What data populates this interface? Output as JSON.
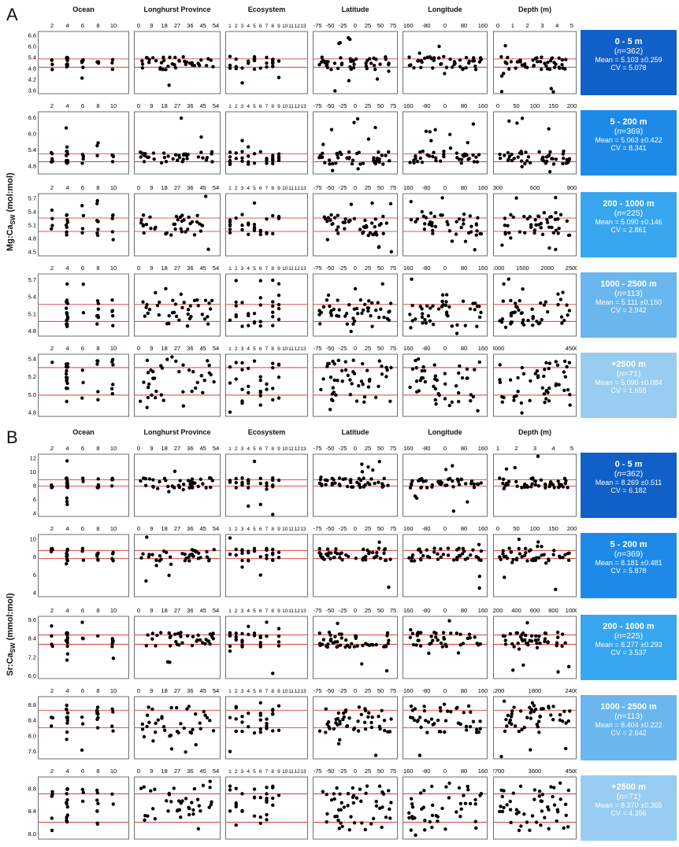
{
  "columns": [
    "Ocean",
    "Longhurst Province",
    "Ecosystem",
    "Latitude",
    "Longitude",
    "Depth (m)"
  ],
  "colors": {
    "point": "#000000",
    "mean_line": "#d42020",
    "frame": "#6e6e6e",
    "box": [
      "#1060c8",
      "#1e8ae8",
      "#38a6ee",
      "#6ab6ee",
      "#98ccf0"
    ]
  },
  "groups": [
    {
      "letter": "A",
      "ylabel_main": "Mg:Ca",
      "ylabel_sub": "SW",
      "ylabel_unit": " (mol:mol)",
      "rows": [
        {
          "yticks": [
            "6.6",
            "6.0",
            "5.4",
            "4.8",
            "4.2",
            "3.6"
          ],
          "ylim": [
            3.4,
            6.8
          ],
          "lines": [
            5.3,
            4.85
          ],
          "xticks": [
            [
              "2",
              "4",
              "6",
              "8",
              "10"
            ],
            [
              "0",
              "9",
              "18",
              "27",
              "36",
              "45",
              "54"
            ],
            [
              "1",
              "2",
              "3",
              "4",
              "5",
              "6",
              "7",
              "8",
              "9",
              "10",
              "11",
              "12",
              "13"
            ],
            [
              "-75",
              "-50",
              "-25",
              "0",
              "25",
              "50",
              "75"
            ],
            [
              "-160",
              "-80",
              "0",
              "80",
              "160"
            ],
            [
              "0",
              "1",
              "2",
              "3",
              "4",
              "5"
            ]
          ],
          "stats": {
            "range": "0 - 5 m",
            "n": "362",
            "mean": "Mean = 5.103 ±0.259",
            "cv": "CV =  5.078"
          }
        },
        {
          "yticks": [
            "6.6",
            "6.0",
            "5.4",
            "4.8"
          ],
          "ylim": [
            4.5,
            6.8
          ],
          "lines": [
            5.25,
            4.95
          ],
          "xticks": [
            [
              "2",
              "4",
              "6",
              "8",
              "10"
            ],
            [
              "0",
              "9",
              "18",
              "27",
              "36",
              "45",
              "54"
            ],
            [
              "1",
              "2",
              "3",
              "4",
              "5",
              "6",
              "7",
              "8",
              "9",
              "10",
              "11",
              "12",
              "13"
            ],
            [
              "-75",
              "-50",
              "-25",
              "0",
              "25",
              "50",
              "75"
            ],
            [
              "-160",
              "-80",
              "0",
              "80",
              "160"
            ],
            [
              "0",
              "50",
              "100",
              "150",
              "200"
            ]
          ],
          "stats": {
            "range": "5 - 200 m",
            "n": "369",
            "mean": "Mean = 5.063 ±0.422",
            "cv": "CV =  8.341"
          }
        },
        {
          "yticks": [
            "5.7",
            "5.4",
            "5.1",
            "4.8",
            "4.5"
          ],
          "ylim": [
            4.4,
            5.8
          ],
          "lines": [
            5.25,
            4.95
          ],
          "xticks": [
            [
              "2",
              "4",
              "6",
              "8",
              "10"
            ],
            [
              "0",
              "9",
              "18",
              "27",
              "36",
              "45",
              "54"
            ],
            [
              "1",
              "2",
              "3",
              "4",
              "5",
              "6",
              "7",
              "8",
              "9",
              "10",
              "11",
              "12",
              "13"
            ],
            [
              "-75",
              "-50",
              "-25",
              "0",
              "25",
              "50",
              "75"
            ],
            [
              "-160",
              "-80",
              "0",
              "80",
              "160"
            ],
            [
              "300",
              "600",
              "900"
            ]
          ],
          "stats": {
            "range": "200 - 1000 m",
            "n": "225",
            "mean": "Mean = 5.090 ±0.146",
            "cv": "CV =  2.861"
          }
        },
        {
          "yticks": [
            "5.7",
            "5.4",
            "5.1",
            "4.8"
          ],
          "ylim": [
            4.7,
            5.8
          ],
          "lines": [
            5.26,
            4.96
          ],
          "xticks": [
            [
              "2",
              "4",
              "6",
              "8",
              "10"
            ],
            [
              "0",
              "9",
              "18",
              "27",
              "36",
              "45",
              "54"
            ],
            [
              "1",
              "2",
              "3",
              "4",
              "5",
              "6",
              "7",
              "8",
              "9",
              "10",
              "11",
              "12",
              "13"
            ],
            [
              "-75",
              "-50",
              "-25",
              "0",
              "25",
              "50",
              "75"
            ],
            [
              "-160",
              "-80",
              "0",
              "80",
              "160"
            ],
            [
              "1000",
              "1500",
              "2000",
              "2500"
            ]
          ],
          "stats": {
            "range": "1000 - 2500 m",
            "n": "113",
            "mean": "Mean = 5.111 ±0.150",
            "cv": "CV =  2.942"
          }
        },
        {
          "yticks": [
            "5.4",
            "5.2",
            "5.0",
            "4.8"
          ],
          "ylim": [
            4.75,
            5.45
          ],
          "lines": [
            5.3,
            4.99
          ],
          "xticks": [
            [
              "2",
              "4",
              "6",
              "8",
              "10"
            ],
            [
              "0",
              "9",
              "18",
              "27",
              "36",
              "45",
              "54"
            ],
            [
              "1",
              "2",
              "3",
              "4",
              "5",
              "6",
              "7",
              "8",
              "9",
              "10",
              "11",
              "12",
              "13"
            ],
            [
              "-75",
              "-50",
              "-25",
              "0",
              "25",
              "50",
              "75"
            ],
            [
              "-160",
              "-80",
              "0",
              "80",
              "160"
            ],
            [
              "3000",
              "4500"
            ]
          ],
          "stats": {
            "range": "+2500 m",
            "n": "71",
            "mean": "Mean = 5.090 ±0.084",
            "cv": "CV =  1.655"
          }
        }
      ]
    },
    {
      "letter": "B",
      "ylabel_main": "Sr:Ca",
      "ylabel_sub": "SW",
      "ylabel_unit": " (mmol:mol)",
      "rows": [
        {
          "yticks": [
            "12",
            "10",
            "8",
            "6",
            "4"
          ],
          "ylim": [
            3.5,
            12.5
          ],
          "lines": [
            8.8,
            7.9
          ],
          "xticks": [
            [
              "2",
              "4",
              "6",
              "8",
              "10"
            ],
            [
              "0",
              "9",
              "18",
              "27",
              "36",
              "45",
              "54"
            ],
            [
              "1",
              "2",
              "3",
              "4",
              "5",
              "6",
              "7",
              "8",
              "9",
              "10",
              "11",
              "12",
              "13"
            ],
            [
              "-75",
              "-50",
              "-25",
              "0",
              "25",
              "50",
              "75"
            ],
            [
              "-160",
              "-80",
              "0",
              "80",
              "160"
            ],
            [
              "1",
              "2",
              "3",
              "4",
              "5"
            ]
          ],
          "stats": {
            "range": "0 - 5 m",
            "n": "362",
            "mean": "Mean = 8.269 ±0.511",
            "cv": "CV =  6.182"
          }
        },
        {
          "yticks": [
            "10",
            "8",
            "6",
            "4"
          ],
          "ylim": [
            3.5,
            10.5
          ],
          "lines": [
            8.7,
            7.8
          ],
          "xticks": [
            [
              "2",
              "4",
              "6",
              "8",
              "10"
            ],
            [
              "0",
              "9",
              "18",
              "27",
              "36",
              "45",
              "54"
            ],
            [
              "1",
              "2",
              "3",
              "4",
              "5",
              "6",
              "7",
              "8",
              "9",
              "10",
              "11",
              "12",
              "13"
            ],
            [
              "-75",
              "-50",
              "-25",
              "0",
              "25",
              "50",
              "75"
            ],
            [
              "-160",
              "-80",
              "0",
              "80",
              "160"
            ],
            [
              "0",
              "50",
              "100",
              "150",
              "200"
            ]
          ],
          "stats": {
            "range": "5 - 200 m",
            "n": "369",
            "mean": "Mean = 8.181 ±0.481",
            "cv": "CV =  5.878"
          }
        },
        {
          "yticks": [
            "9.6",
            "8.4",
            "7.2",
            "6.0"
          ],
          "ylim": [
            5.8,
            9.8
          ],
          "lines": [
            8.6,
            8.0
          ],
          "xticks": [
            [
              "2",
              "4",
              "6",
              "8",
              "10"
            ],
            [
              "0",
              "9",
              "18",
              "27",
              "36",
              "45",
              "54"
            ],
            [
              "1",
              "2",
              "3",
              "4",
              "5",
              "6",
              "7",
              "8",
              "9",
              "10",
              "11",
              "12",
              "13"
            ],
            [
              "-75",
              "-50",
              "-25",
              "0",
              "25",
              "50",
              "75"
            ],
            [
              "-160",
              "-80",
              "0",
              "80",
              "160"
            ],
            [
              "200",
              "400",
              "600",
              "800",
              "1000"
            ]
          ],
          "stats": {
            "range": "200 - 1000 m",
            "n": "225",
            "mean": "Mean = 8.277 ±0.293",
            "cv": "CV =  3.537"
          }
        },
        {
          "yticks": [
            "8.8",
            "8.4",
            "8.0",
            "7.6"
          ],
          "ylim": [
            7.4,
            9.0
          ],
          "lines": [
            8.65,
            8.2
          ],
          "xticks": [
            [
              "2",
              "4",
              "6",
              "8",
              "10"
            ],
            [
              "0",
              "9",
              "18",
              "27",
              "36",
              "45",
              "54"
            ],
            [
              "1",
              "2",
              "3",
              "4",
              "5",
              "6",
              "7",
              "8",
              "9",
              "10",
              "11",
              "12",
              "13"
            ],
            [
              "-75",
              "-50",
              "-25",
              "0",
              "25",
              "50",
              "75"
            ],
            [
              "-160",
              "-80",
              "0",
              "80",
              "160"
            ],
            [
              "1200",
              "1800",
              "2400"
            ]
          ],
          "stats": {
            "range": "1000 - 2500 m",
            "n": "113",
            "mean": "Mean = 8.404 ±0.222",
            "cv": "CV =  2.642"
          }
        },
        {
          "yticks": [
            "8.8",
            "8.4",
            "8.0"
          ],
          "ylim": [
            7.9,
            9.0
          ],
          "lines": [
            8.7,
            8.2
          ],
          "xticks": [
            [
              "2",
              "4",
              "6",
              "8",
              "10"
            ],
            [
              "0",
              "9",
              "18",
              "27",
              "36",
              "45",
              "54"
            ],
            [
              "1",
              "2",
              "3",
              "4",
              "5",
              "6",
              "7",
              "8",
              "9",
              "10",
              "11",
              "12",
              "13"
            ],
            [
              "-75",
              "-50",
              "-25",
              "0",
              "25",
              "50",
              "75"
            ],
            [
              "-160",
              "-80",
              "0",
              "80",
              "160"
            ],
            [
              "2700",
              "3600",
              "4500"
            ]
          ],
          "stats": {
            "range": "+2500 m",
            "n": "71",
            "mean": "Mean = 8.370 ±0.365",
            "cv": "CV =  4.356"
          }
        }
      ]
    }
  ],
  "chart_data": {
    "type": "scatter",
    "panels": [
      {
        "panel": "A",
        "ylabel": "Mg:CaSW (mol:mol)",
        "column_titles": [
          "Ocean",
          "Longhurst Province",
          "Ecosystem",
          "Latitude",
          "Longitude",
          "Depth (m)"
        ],
        "depth_bins": [
          {
            "bin": "0 - 5 m",
            "n": 362,
            "mean": 5.103,
            "sd": 0.259,
            "cv": 5.078
          },
          {
            "bin": "5 - 200 m",
            "n": 369,
            "mean": 5.063,
            "sd": 0.422,
            "cv": 8.341
          },
          {
            "bin": "200 - 1000 m",
            "n": 225,
            "mean": 5.09,
            "sd": 0.146,
            "cv": 2.861
          },
          {
            "bin": "1000 - 2500 m",
            "n": 113,
            "mean": 5.111,
            "sd": 0.15,
            "cv": 2.942
          },
          {
            "bin": "+2500 m",
            "n": 71,
            "mean": 5.09,
            "sd": 0.084,
            "cv": 1.655
          }
        ]
      },
      {
        "panel": "B",
        "ylabel": "Sr:CaSW (mmol:mol)",
        "column_titles": [
          "Ocean",
          "Longhurst Province",
          "Ecosystem",
          "Latitude",
          "Longitude",
          "Depth (m)"
        ],
        "depth_bins": [
          {
            "bin": "0 - 5 m",
            "n": 362,
            "mean": 8.269,
            "sd": 0.511,
            "cv": 6.182
          },
          {
            "bin": "5 - 200 m",
            "n": 369,
            "mean": 8.181,
            "sd": 0.481,
            "cv": 5.878
          },
          {
            "bin": "200 - 1000 m",
            "n": 225,
            "mean": 8.277,
            "sd": 0.293,
            "cv": 3.537
          },
          {
            "bin": "1000 - 2500 m",
            "n": 113,
            "mean": 8.404,
            "sd": 0.222,
            "cv": 2.642
          },
          {
            "bin": "+2500 m",
            "n": 71,
            "mean": 8.37,
            "sd": 0.365,
            "cv": 4.356
          }
        ]
      }
    ]
  }
}
